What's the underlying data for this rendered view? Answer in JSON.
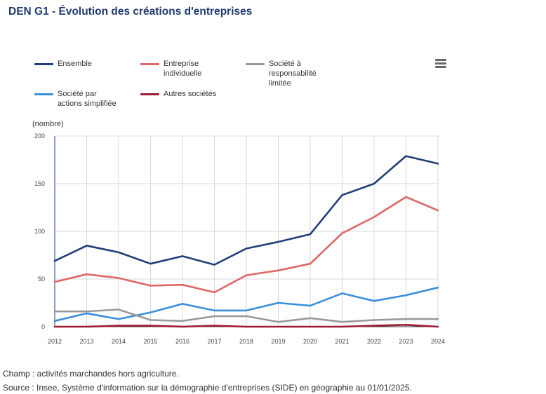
{
  "title": "DEN G1 - Évolution des créations d'entreprises",
  "menu_icon": "hamburger-menu-icon",
  "footnotes": {
    "champ": "Champ : activités marchandes hors agriculture.",
    "source": "Source : Insee, Système d'information sur la démographie d'entreprises (SIDE) en géographie au 01/01/2025."
  },
  "chart_data": {
    "type": "line",
    "title": "DEN G1 - Évolution des créations d'entreprises",
    "xlabel": "",
    "ylabel": "(nombre)",
    "ylim": [
      0,
      200
    ],
    "yticks": [
      0,
      50,
      100,
      150,
      200
    ],
    "grid": true,
    "legend_position": "top",
    "x": [
      "2012",
      "2013",
      "2014",
      "2015",
      "2016",
      "2017",
      "2018",
      "2019",
      "2020",
      "2021",
      "2022",
      "2023",
      "2024"
    ],
    "series": [
      {
        "name": "Ensemble",
        "color": "#1f3f7a",
        "values": [
          69,
          85,
          78,
          66,
          74,
          65,
          82,
          89,
          97,
          138,
          150,
          179,
          171
        ]
      },
      {
        "name": "Entreprise individuelle",
        "color": "#e06666",
        "values": [
          47,
          55,
          51,
          43,
          44,
          36,
          54,
          59,
          66,
          98,
          115,
          136,
          122
        ]
      },
      {
        "name": "Société à responsabilité limitée",
        "color": "#999999",
        "values": [
          16,
          16,
          18,
          7,
          6,
          11,
          11,
          5,
          9,
          5,
          7,
          8,
          8
        ]
      },
      {
        "name": "Société par actions simplifiée",
        "color": "#3a8fdc",
        "values": [
          6,
          14,
          8,
          15,
          24,
          17,
          17,
          25,
          22,
          35,
          27,
          33,
          41
        ]
      },
      {
        "name": "Autres sociétés",
        "color": "#9e1b32",
        "values": [
          0,
          0,
          1,
          1,
          0,
          1,
          0,
          0,
          0,
          0,
          1,
          2,
          0
        ]
      }
    ],
    "legend_labels": [
      [
        "Ensemble"
      ],
      [
        "Entreprise",
        "individuelle"
      ],
      [
        "Société à",
        "responsabilité",
        "limitée"
      ],
      [
        "Société par",
        "actions simplifiée"
      ],
      [
        "Autres sociétés"
      ]
    ]
  }
}
